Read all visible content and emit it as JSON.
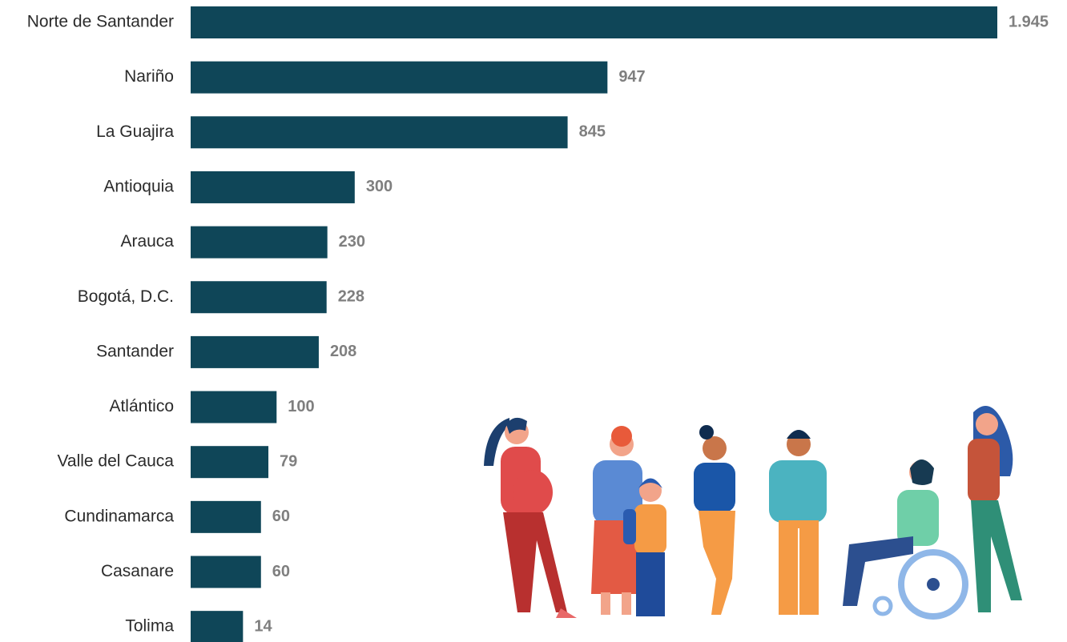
{
  "chart_data": {
    "type": "bar",
    "orientation": "horizontal",
    "categories": [
      "Norte de Santander",
      "Nariño",
      "La Guajira",
      "Antioquia",
      "Arauca",
      "Bogotá, D.C.",
      "Santander",
      "Atlántico",
      "Valle del Cauca",
      "Cundinamarca",
      "Casanare",
      "Tolima"
    ],
    "values": [
      1945,
      947,
      845,
      300,
      230,
      228,
      208,
      100,
      79,
      60,
      60,
      14
    ],
    "value_labels": [
      "1.945",
      "947",
      "845",
      "300",
      "230",
      "228",
      "208",
      "100",
      "79",
      "60",
      "60",
      "14"
    ],
    "color": "#0f4658",
    "xlim": [
      -120,
      1945
    ]
  }
}
